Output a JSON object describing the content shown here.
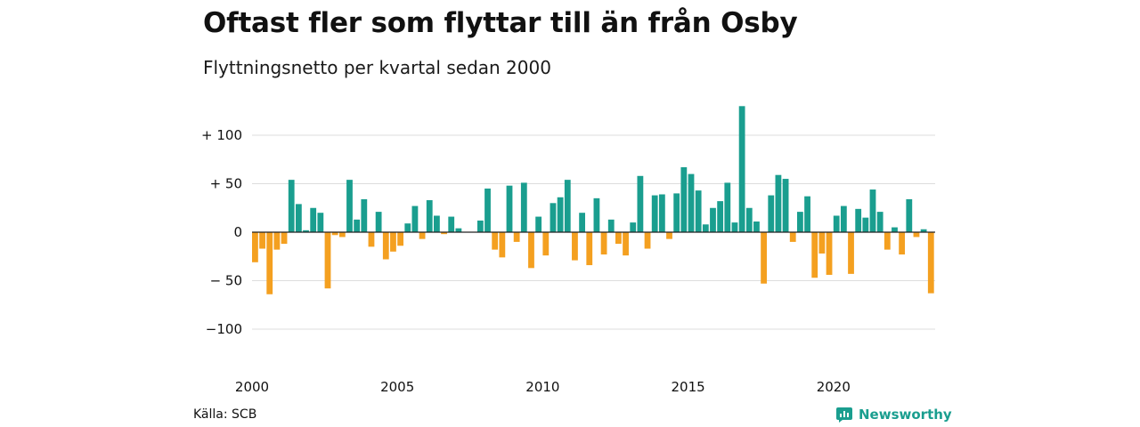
{
  "title": "Oftast fler som flyttar till än från Osby",
  "subtitle": "Flyttningsnetto per kvartal sedan 2000",
  "source": "Källa: SCB",
  "brand": {
    "name": "Newsworthy",
    "icon": "newsworthy-logo-icon",
    "color": "#1a9e8f"
  },
  "chart_data": {
    "type": "bar",
    "xlabel": "",
    "ylabel": "",
    "x_ticks": [
      "2000",
      "2005",
      "2010",
      "2015",
      "2020"
    ],
    "y_ticks": [
      {
        "value": 100,
        "label": "+ 100"
      },
      {
        "value": 50,
        "label": "+  50"
      },
      {
        "value": 0,
        "label": "0"
      },
      {
        "value": -50,
        "label": "− 50"
      },
      {
        "value": -100,
        "label": "−100"
      }
    ],
    "ylim": [
      -120,
      135
    ],
    "x_start": "2000 Q1",
    "positive_color": "#1a9e8f",
    "negative_color": "#f4a020",
    "grid": true,
    "values": [
      -31,
      -17,
      -64,
      -18,
      -12,
      54,
      29,
      2,
      25,
      20,
      -58,
      -3,
      -5,
      54,
      13,
      34,
      -15,
      21,
      -28,
      -20,
      -14,
      9,
      27,
      -7,
      33,
      17,
      -2,
      16,
      4,
      0,
      0,
      12,
      45,
      -18,
      -26,
      48,
      -10,
      51,
      -37,
      16,
      -24,
      30,
      36,
      54,
      -29,
      20,
      -34,
      35,
      -23,
      13,
      -12,
      -24,
      10,
      58,
      -17,
      38,
      39,
      -7,
      40,
      67,
      60,
      43,
      8,
      25,
      32,
      51,
      10,
      130,
      25,
      11,
      -53,
      38,
      59,
      55,
      -10,
      21,
      37,
      -47,
      -22,
      -44,
      17,
      27,
      -43,
      24,
      15,
      44,
      21,
      -18,
      5,
      -23,
      34,
      -5,
      3,
      -63
    ]
  }
}
